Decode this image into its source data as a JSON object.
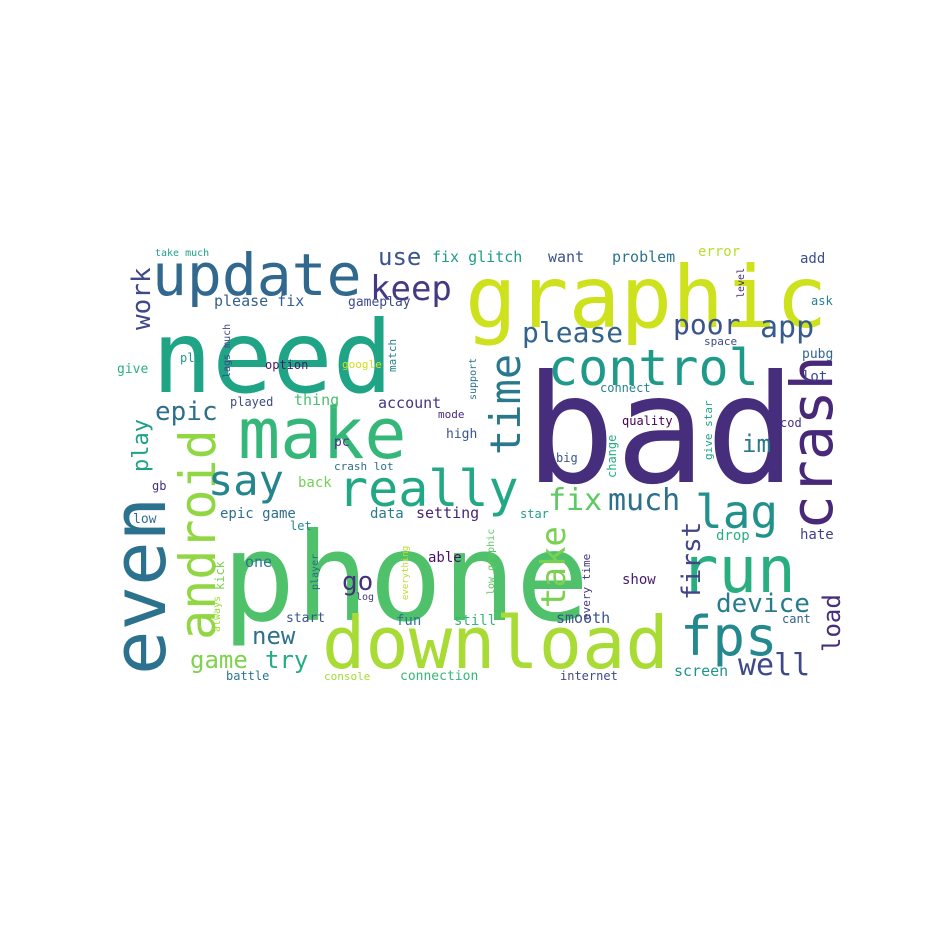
{
  "words": [
    {
      "text": "bad",
      "color": "#472e7c"
    },
    {
      "text": "phone",
      "color": "#4fc16b"
    },
    {
      "text": "need",
      "color": "#20a486"
    },
    {
      "text": "graphic",
      "color": "#cde11d"
    },
    {
      "text": "download",
      "color": "#a8db34"
    },
    {
      "text": "make",
      "color": "#35b779"
    },
    {
      "text": "even",
      "color": "#2c728e"
    },
    {
      "text": "update",
      "color": "#31688e"
    },
    {
      "text": "run",
      "color": "#29af7f"
    },
    {
      "text": "really",
      "color": "#22a884"
    },
    {
      "text": "control",
      "color": "#1f9a8a"
    },
    {
      "text": "crash",
      "color": "#482878"
    },
    {
      "text": "fps",
      "color": "#23898e"
    },
    {
      "text": "android",
      "color": "#90d743"
    },
    {
      "text": "time",
      "color": "#2a788e"
    },
    {
      "text": "lag",
      "color": "#21918c"
    },
    {
      "text": "say",
      "color": "#25858e"
    },
    {
      "text": "well",
      "color": "#3e4989"
    },
    {
      "text": "take",
      "color": "#7ad151"
    },
    {
      "text": "keep",
      "color": "#443983"
    },
    {
      "text": "much",
      "color": "#2d708e"
    },
    {
      "text": "app",
      "color": "#365c8d"
    },
    {
      "text": "device",
      "color": "#287c8e"
    },
    {
      "text": "fix",
      "color": "#5ec962"
    },
    {
      "text": "please",
      "color": "#33638d"
    },
    {
      "text": "poor",
      "color": "#3b528b"
    },
    {
      "text": "first",
      "color": "#414487"
    },
    {
      "text": "epic",
      "color": "#2e6f8e"
    },
    {
      "text": "load",
      "color": "#472d7b"
    },
    {
      "text": "work",
      "color": "#3f4889"
    },
    {
      "text": "im",
      "color": "#2a778e"
    },
    {
      "text": "go",
      "color": "#46317e"
    },
    {
      "text": "use",
      "color": "#3a548c"
    },
    {
      "text": "try",
      "color": "#25ac82"
    },
    {
      "text": "new",
      "color": "#2d718e"
    },
    {
      "text": "game",
      "color": "#7fd34e"
    },
    {
      "text": "play",
      "color": "#1fa187"
    },
    {
      "text": "fix glitch",
      "color": "#1e9c89"
    },
    {
      "text": "want",
      "color": "#3b518b"
    },
    {
      "text": "problem",
      "color": "#2c738e"
    },
    {
      "text": "please fix",
      "color": "#355f8d"
    },
    {
      "text": "gameplay",
      "color": "#3e4c8a"
    },
    {
      "text": "account",
      "color": "#453581"
    },
    {
      "text": "epic game",
      "color": "#2e6e8e"
    },
    {
      "text": "setting",
      "color": "#482575"
    },
    {
      "text": "data",
      "color": "#297a8e"
    },
    {
      "text": "smooth",
      "color": "#3b528b"
    },
    {
      "text": "thing",
      "color": "#4ac16d"
    },
    {
      "text": "played",
      "color": "#3e4a89"
    },
    {
      "text": "back",
      "color": "#73d056"
    },
    {
      "text": "fun",
      "color": "#2a768e"
    },
    {
      "text": "still",
      "color": "#34b679"
    },
    {
      "text": "connection",
      "color": "#35b779"
    },
    {
      "text": "screen",
      "color": "#1f968b"
    },
    {
      "text": "internet",
      "color": "#3f4788"
    },
    {
      "text": "able",
      "color": "#471365"
    },
    {
      "text": "show",
      "color": "#481b6d"
    },
    {
      "text": "error",
      "color": "#b8de29"
    },
    {
      "text": "add",
      "color": "#3c4f8a"
    },
    {
      "text": "level",
      "color": "#482979"
    },
    {
      "text": "ask",
      "color": "#27808e"
    },
    {
      "text": "space",
      "color": "#3f4889"
    },
    {
      "text": "pubg",
      "color": "#31668e"
    },
    {
      "text": "lot",
      "color": "#3e4a89"
    },
    {
      "text": "connect",
      "color": "#25848e"
    },
    {
      "text": "quality",
      "color": "#440154"
    },
    {
      "text": "cod",
      "color": "#46337f"
    },
    {
      "text": "give star",
      "color": "#21a685"
    },
    {
      "text": "big",
      "color": "#3a548c"
    },
    {
      "text": "change",
      "color": "#26ad81"
    },
    {
      "text": "hate",
      "color": "#433e85"
    },
    {
      "text": "drop",
      "color": "#29af7f"
    },
    {
      "text": "every time",
      "color": "#443a83"
    },
    {
      "text": "cant",
      "color": "#33638d"
    },
    {
      "text": "star",
      "color": "#1f9e89"
    },
    {
      "text": "high",
      "color": "#39568c"
    },
    {
      "text": "mode",
      "color": "#482878"
    },
    {
      "text": "support",
      "color": "#2c728e"
    },
    {
      "text": "low graphic",
      "color": "#5ec962"
    },
    {
      "text": "match",
      "color": "#277f8e"
    },
    {
      "text": "google",
      "color": "#d2e21b"
    },
    {
      "text": "option",
      "color": "#481b6d"
    },
    {
      "text": "lags much",
      "color": "#3f4788"
    },
    {
      "text": "pls",
      "color": "#1f988b"
    },
    {
      "text": "give",
      "color": "#2ab07f"
    },
    {
      "text": "take much",
      "color": "#1fa088"
    },
    {
      "text": "pc",
      "color": "#46327e"
    },
    {
      "text": "crash lot",
      "color": "#2e6d8e"
    },
    {
      "text": "gb",
      "color": "#472f7d"
    },
    {
      "text": "low",
      "color": "#2f6c8e"
    },
    {
      "text": "let",
      "color": "#23888e"
    },
    {
      "text": "one",
      "color": "#2a788e"
    },
    {
      "text": "kick",
      "color": "#7ad151"
    },
    {
      "text": "always",
      "color": "#a0da39"
    },
    {
      "text": "start",
      "color": "#3a548c"
    },
    {
      "text": "player",
      "color": "#30698e"
    },
    {
      "text": "everything",
      "color": "#bade28"
    },
    {
      "text": "log",
      "color": "#453882"
    },
    {
      "text": "battle",
      "color": "#2a768e"
    },
    {
      "text": "console",
      "color": "#a5db36"
    }
  ]
}
